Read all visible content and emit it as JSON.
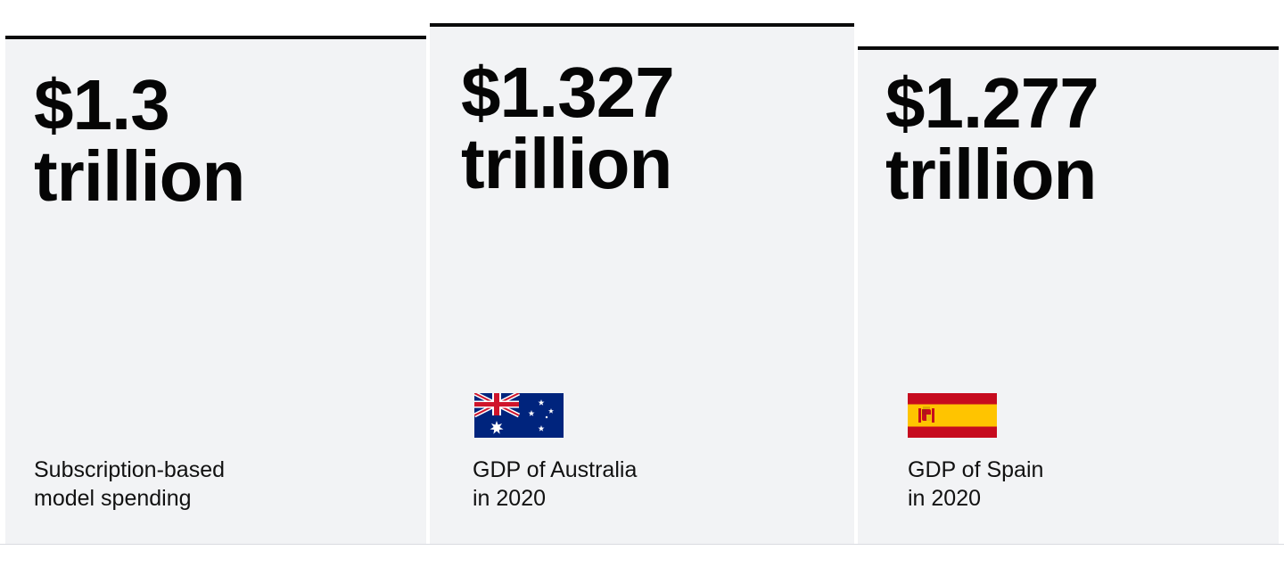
{
  "cards": [
    {
      "amount": "$1.3",
      "unit": "trillion",
      "caption_line1": "Subscription-based",
      "caption_line2": "model spending"
    },
    {
      "amount": "$1.327",
      "unit": "trillion",
      "flag_icon": "australia-flag-icon",
      "caption_line1": "GDP of Australia",
      "caption_line2": "in 2020"
    },
    {
      "amount": "$1.277",
      "unit": "trillion",
      "flag_icon": "spain-flag-icon",
      "caption_line1": "GDP of Spain",
      "caption_line2": "in 2020"
    }
  ],
  "colors": {
    "card_background": "#f2f3f5",
    "top_border": "#0b0b0b",
    "text": "#050505",
    "australia_blue": "#00247d",
    "australia_red": "#cf142b",
    "spain_red": "#c60b1e",
    "spain_yellow": "#ffc400"
  }
}
